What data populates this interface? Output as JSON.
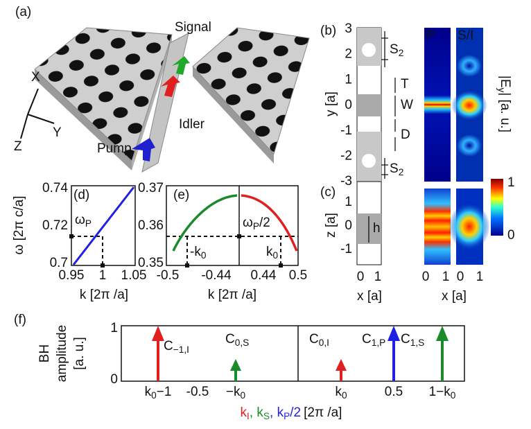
{
  "panel_a": {
    "label": "(a)",
    "signal": "Signal",
    "idler": "Idler",
    "pump": "Pump",
    "axes": [
      "X",
      "Y",
      "Z"
    ]
  },
  "panel_b": {
    "label": "(b)",
    "y_ticks": [
      "3",
      "2",
      "1",
      "0",
      "-1",
      "-2",
      "-3"
    ],
    "y_axis": "y [a]",
    "regions": {
      "s2_top": {
        "base": "S",
        "sub": "2"
      },
      "t": "T",
      "w": "W",
      "d": "D",
      "s2_bottom": {
        "base": "S",
        "sub": "2"
      }
    },
    "maps": [
      "P",
      "S/I"
    ],
    "colorbar": {
      "label": {
        "base": "|E",
        "sub": "y",
        "rest": "| [a. u.]"
      },
      "max": "1",
      "min": "0"
    }
  },
  "panel_c": {
    "label": "(c)",
    "z_ticks": [
      "1",
      "0",
      "-1"
    ],
    "z_axis": "z [a]",
    "h": "h",
    "x_ticks": [
      "0",
      "1"
    ],
    "x_axis": "x [a]"
  },
  "panel_d": {
    "label": "(d)",
    "y_ticks": [
      "0.74",
      "0.72",
      "0.7"
    ],
    "y_axis": "ω [2π c/a]",
    "omega_p": {
      "base": "ω",
      "sub": "P"
    },
    "x_ticks": [
      "0.95",
      "1",
      "1.05"
    ],
    "x_axis": "k [2π /a]"
  },
  "panel_e": {
    "label": "(e)",
    "y_ticks": [
      "0.37",
      "0.36",
      "0.35"
    ],
    "omega_half": {
      "base": "ω",
      "sub": "P",
      "rest": "/2"
    },
    "minus_k0": {
      "base": "-k",
      "sub": "0"
    },
    "k0": {
      "base": "k",
      "sub": "0"
    },
    "x_ticks": [
      "-0.5",
      "-0.44",
      "0.44",
      "0.5"
    ],
    "x_axis": "k [2π /a]"
  },
  "panel_f": {
    "label": "(f)",
    "y_axis": [
      "BH",
      "amplitude",
      "[a. u.]"
    ],
    "y_ticks": [
      "1",
      "0"
    ],
    "arrows": [
      {
        "base": "C",
        "sub": "−1,I"
      },
      {
        "base": "C",
        "sub": "0,S"
      },
      {
        "base": "C",
        "sub": "0,I"
      },
      {
        "base": "C",
        "sub": "1,P"
      },
      {
        "base": "C",
        "sub": "1,S"
      }
    ],
    "x_ticks": [
      {
        "base": "k",
        "sub": "0",
        "rest": "−1"
      },
      "-0.5",
      {
        "base": "−k",
        "sub": "0"
      },
      {
        "base": "k",
        "sub": "0"
      },
      "0.5",
      {
        "base": "1−k",
        "sub": "0"
      }
    ],
    "x_axis": [
      {
        "base": "k",
        "sub": "I"
      },
      {
        "base": ", k",
        "sub": "S"
      },
      {
        "base": ", k",
        "sub": "P",
        "rest": "/2"
      },
      "[2π /a]"
    ]
  }
}
